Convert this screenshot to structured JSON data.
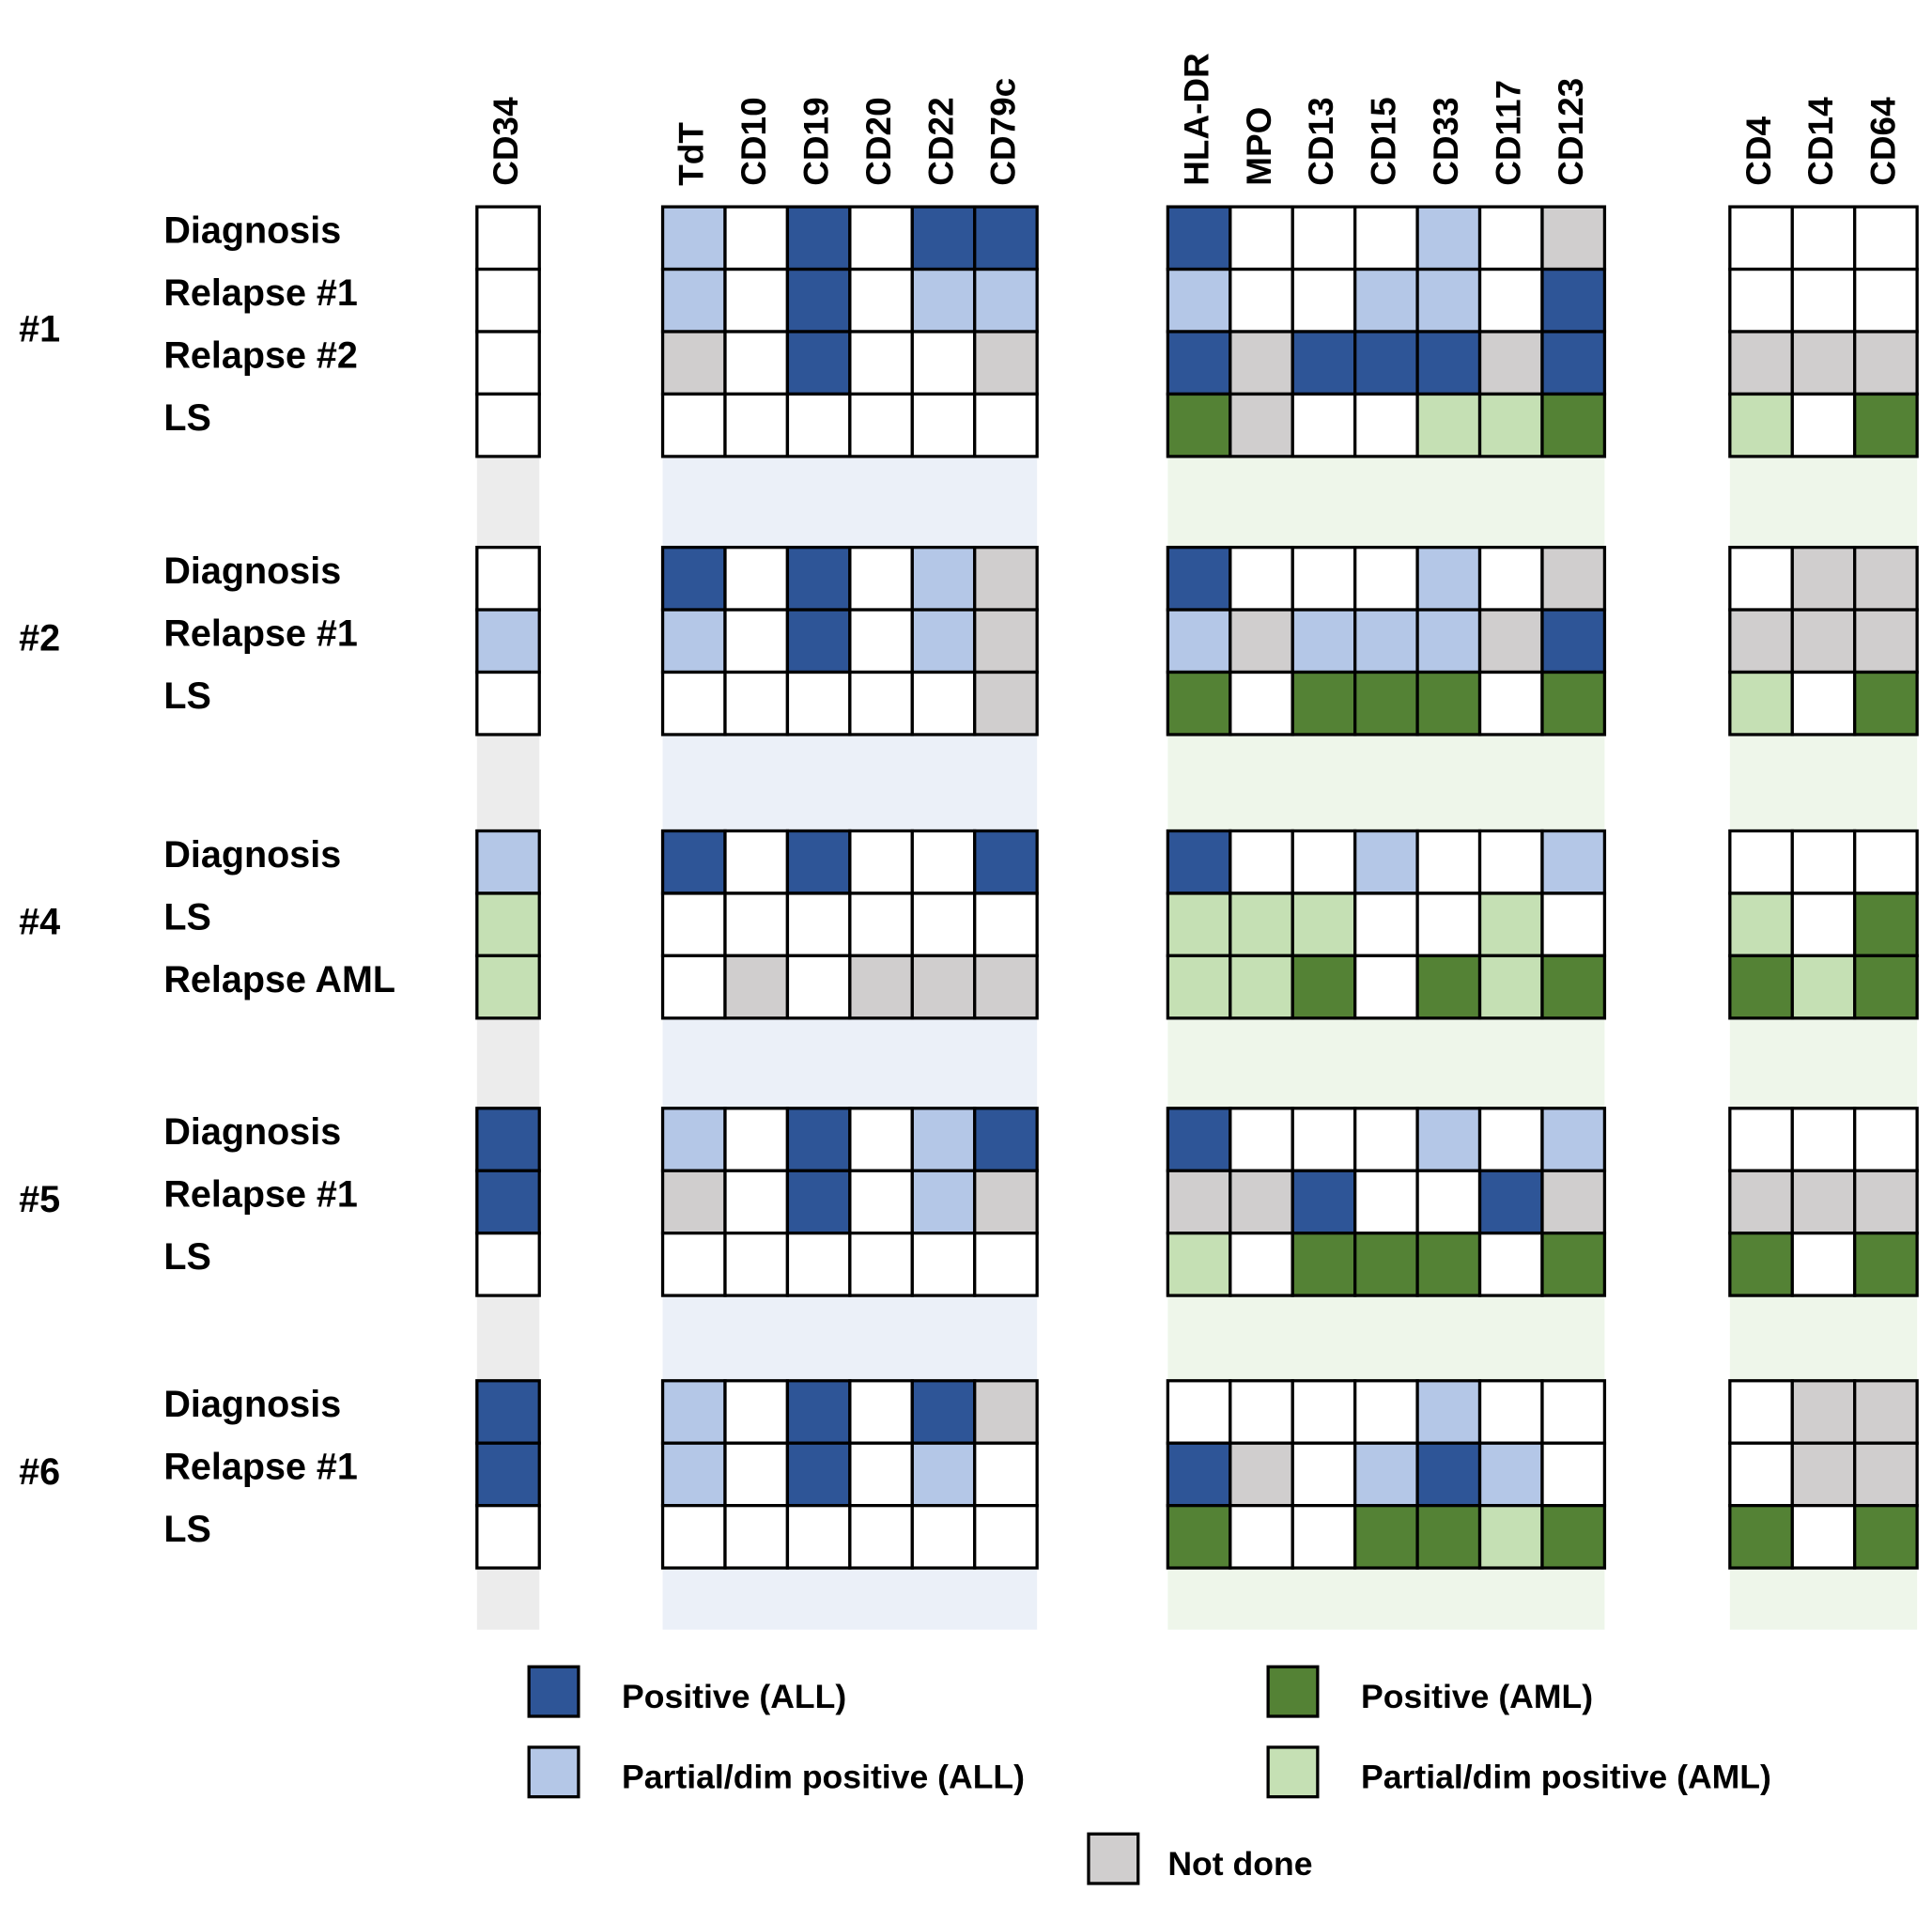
{
  "marker_groups": [
    {
      "markers": [
        "CD34"
      ]
    },
    {
      "markers": [
        "TdT",
        "CD10",
        "CD19",
        "CD20",
        "CD22",
        "CD79c"
      ]
    },
    {
      "markers": [
        "HLA-DR",
        "MPO",
        "CD13",
        "CD15",
        "CD33",
        "CD117",
        "CD123"
      ]
    },
    {
      "markers": [
        "CD4",
        "CD14",
        "CD64"
      ]
    }
  ],
  "legend": [
    {
      "label": "Positive (ALL)",
      "color": "#2e5597"
    },
    {
      "label": "Partial/dim positive (ALL)",
      "color": "#b4c7e7"
    },
    {
      "label": "Positive (AML)",
      "color": "#548235"
    },
    {
      "label": "Partial/dim positive (AML)",
      "color": "#c5e0b4"
    },
    {
      "label": "Not done",
      "color": "#d0cece"
    }
  ],
  "patients": [
    {
      "label": "#1",
      "rows": [
        {
          "label": "Diagnosis",
          "cells": [
            null,
            "Partial/dim positive (ALL)",
            null,
            "Positive (ALL)",
            null,
            "Positive (ALL)",
            "Positive (ALL)",
            "Positive (ALL)",
            null,
            null,
            null,
            "Partial/dim positive (ALL)",
            null,
            "Not done",
            null,
            null,
            null
          ]
        },
        {
          "label": "Relapse #1",
          "cells": [
            null,
            "Partial/dim positive (ALL)",
            null,
            "Positive (ALL)",
            null,
            "Partial/dim positive (ALL)",
            "Partial/dim positive (ALL)",
            "Partial/dim positive (ALL)",
            null,
            null,
            "Partial/dim positive (ALL)",
            "Partial/dim positive (ALL)",
            null,
            "Positive (ALL)",
            null,
            null,
            null
          ]
        },
        {
          "label": "Relapse #2",
          "cells": [
            null,
            "Not done",
            null,
            "Positive (ALL)",
            null,
            null,
            "Not done",
            "Positive (ALL)",
            "Not done",
            "Positive (ALL)",
            "Positive (ALL)",
            "Positive (ALL)",
            "Not done",
            "Positive (ALL)",
            "Not done",
            "Not done",
            "Not done"
          ]
        },
        {
          "label": "LS",
          "cells": [
            null,
            null,
            null,
            null,
            null,
            null,
            null,
            "Positive (AML)",
            "Not done",
            null,
            null,
            "Partial/dim positive (AML)",
            "Partial/dim positive (AML)",
            "Positive (AML)",
            "Partial/dim positive (AML)",
            null,
            "Positive (AML)"
          ]
        }
      ]
    },
    {
      "label": "#2",
      "rows": [
        {
          "label": "Diagnosis",
          "cells": [
            null,
            "Positive (ALL)",
            null,
            "Positive (ALL)",
            null,
            "Partial/dim positive (ALL)",
            "Not done",
            "Positive (ALL)",
            null,
            null,
            null,
            "Partial/dim positive (ALL)",
            null,
            "Not done",
            null,
            "Not done",
            "Not done"
          ]
        },
        {
          "label": "Relapse #1",
          "cells": [
            "Partial/dim positive (ALL)",
            "Partial/dim positive (ALL)",
            null,
            "Positive (ALL)",
            null,
            "Partial/dim positive (ALL)",
            "Not done",
            "Partial/dim positive (ALL)",
            "Not done",
            "Partial/dim positive (ALL)",
            "Partial/dim positive (ALL)",
            "Partial/dim positive (ALL)",
            "Not done",
            "Positive (ALL)",
            "Not done",
            "Not done",
            "Not done"
          ]
        },
        {
          "label": "LS",
          "cells": [
            null,
            null,
            null,
            null,
            null,
            null,
            "Not done",
            "Positive (AML)",
            null,
            "Positive (AML)",
            "Positive (AML)",
            "Positive (AML)",
            null,
            "Positive (AML)",
            "Partial/dim positive (AML)",
            null,
            "Positive (AML)"
          ]
        }
      ]
    },
    {
      "label": "#4",
      "rows": [
        {
          "label": "Diagnosis",
          "cells": [
            "Partial/dim positive (ALL)",
            "Positive (ALL)",
            null,
            "Positive (ALL)",
            null,
            null,
            "Positive (ALL)",
            "Positive (ALL)",
            null,
            null,
            "Partial/dim positive (ALL)",
            null,
            null,
            "Partial/dim positive (ALL)",
            null,
            null,
            null
          ]
        },
        {
          "label": "LS",
          "cells": [
            "Partial/dim positive (AML)",
            null,
            null,
            null,
            null,
            null,
            null,
            "Partial/dim positive (AML)",
            "Partial/dim positive (AML)",
            "Partial/dim positive (AML)",
            null,
            null,
            "Partial/dim positive (AML)",
            null,
            "Partial/dim positive (AML)",
            null,
            "Positive (AML)"
          ]
        },
        {
          "label": "Relapse AML",
          "cells": [
            "Partial/dim positive (AML)",
            null,
            "Not done",
            null,
            "Not done",
            "Not done",
            "Not done",
            "Partial/dim positive (AML)",
            "Partial/dim positive (AML)",
            "Positive (AML)",
            null,
            "Positive (AML)",
            "Partial/dim positive (AML)",
            "Positive (AML)",
            "Positive (AML)",
            "Partial/dim positive (AML)",
            "Positive (AML)"
          ]
        }
      ]
    },
    {
      "label": "#5",
      "rows": [
        {
          "label": "Diagnosis",
          "cells": [
            "Positive (ALL)",
            "Partial/dim positive (ALL)",
            null,
            "Positive (ALL)",
            null,
            "Partial/dim positive (ALL)",
            "Positive (ALL)",
            "Positive (ALL)",
            null,
            null,
            null,
            "Partial/dim positive (ALL)",
            null,
            "Partial/dim positive (ALL)",
            null,
            null,
            null
          ]
        },
        {
          "label": "Relapse #1",
          "cells": [
            "Positive (ALL)",
            "Not done",
            null,
            "Positive (ALL)",
            null,
            "Partial/dim positive (ALL)",
            "Not done",
            "Not done",
            "Not done",
            "Positive (ALL)",
            null,
            null,
            "Positive (ALL)",
            "Not done",
            "Not done",
            "Not done",
            "Not done"
          ]
        },
        {
          "label": "LS",
          "cells": [
            null,
            null,
            null,
            null,
            null,
            null,
            null,
            "Partial/dim positive (AML)",
            null,
            "Positive (AML)",
            "Positive (AML)",
            "Positive (AML)",
            null,
            "Positive (AML)",
            "Positive (AML)",
            null,
            "Positive (AML)"
          ]
        }
      ]
    },
    {
      "label": "#6",
      "rows": [
        {
          "label": "Diagnosis",
          "cells": [
            "Positive (ALL)",
            "Partial/dim positive (ALL)",
            null,
            "Positive (ALL)",
            null,
            "Positive (ALL)",
            "Not done",
            null,
            null,
            null,
            null,
            "Partial/dim positive (ALL)",
            null,
            null,
            null,
            "Not done",
            "Not done"
          ]
        },
        {
          "label": "Relapse #1",
          "cells": [
            "Positive (ALL)",
            "Partial/dim positive (ALL)",
            null,
            "Positive (ALL)",
            null,
            "Partial/dim positive (ALL)",
            null,
            "Positive (ALL)",
            "Not done",
            null,
            "Partial/dim positive (ALL)",
            "Positive (ALL)",
            "Partial/dim positive (ALL)",
            null,
            null,
            "Not done",
            "Not done"
          ]
        },
        {
          "label": "LS",
          "cells": [
            null,
            null,
            null,
            null,
            null,
            null,
            null,
            "Positive (AML)",
            null,
            null,
            "Positive (AML)",
            "Positive (AML)",
            "Partial/dim positive (AML)",
            "Positive (AML)",
            "Positive (AML)",
            null,
            "Positive (AML)"
          ]
        }
      ]
    }
  ]
}
